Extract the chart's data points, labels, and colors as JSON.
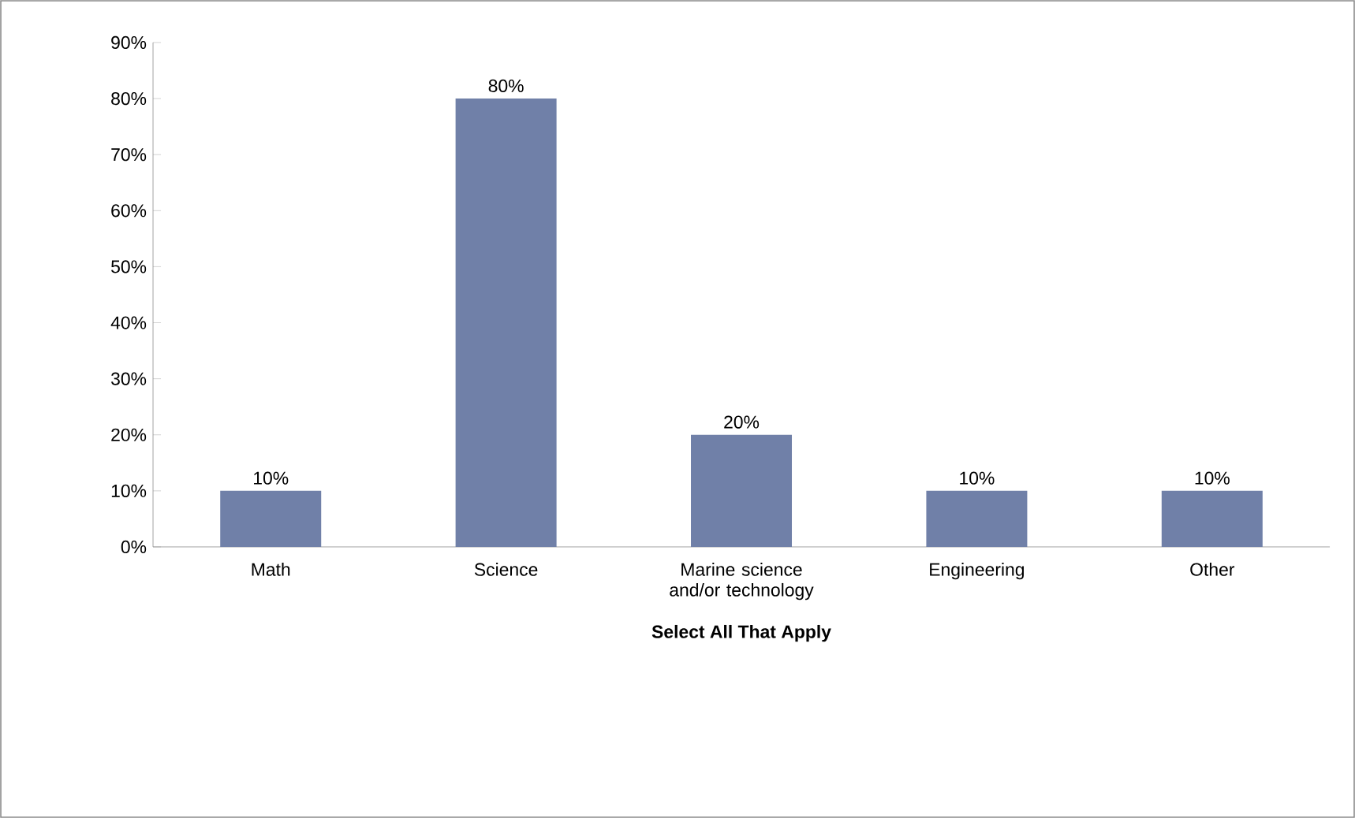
{
  "chart_data": {
    "type": "bar",
    "xlabel": "Select All That Apply",
    "categories": [
      "Math",
      "Science",
      "Marine science and/or technology",
      "Engineering",
      "Other"
    ],
    "values": [
      10,
      80,
      20,
      10,
      10
    ],
    "value_labels": [
      "10%",
      "80%",
      "20%",
      "10%",
      "10%"
    ],
    "color": "#7080a8",
    "ylim": [
      0,
      90
    ],
    "yticks": [
      {
        "value": 0,
        "label": "0%"
      },
      {
        "value": 10,
        "label": "10%"
      },
      {
        "value": 20,
        "label": "20%"
      },
      {
        "value": 30,
        "label": "30%"
      },
      {
        "value": 40,
        "label": "40%"
      },
      {
        "value": 50,
        "label": "50%"
      },
      {
        "value": 60,
        "label": "60%"
      },
      {
        "value": 70,
        "label": "70%"
      },
      {
        "value": 80,
        "label": "80%"
      },
      {
        "value": 90,
        "label": "90%"
      }
    ],
    "grid": false
  }
}
